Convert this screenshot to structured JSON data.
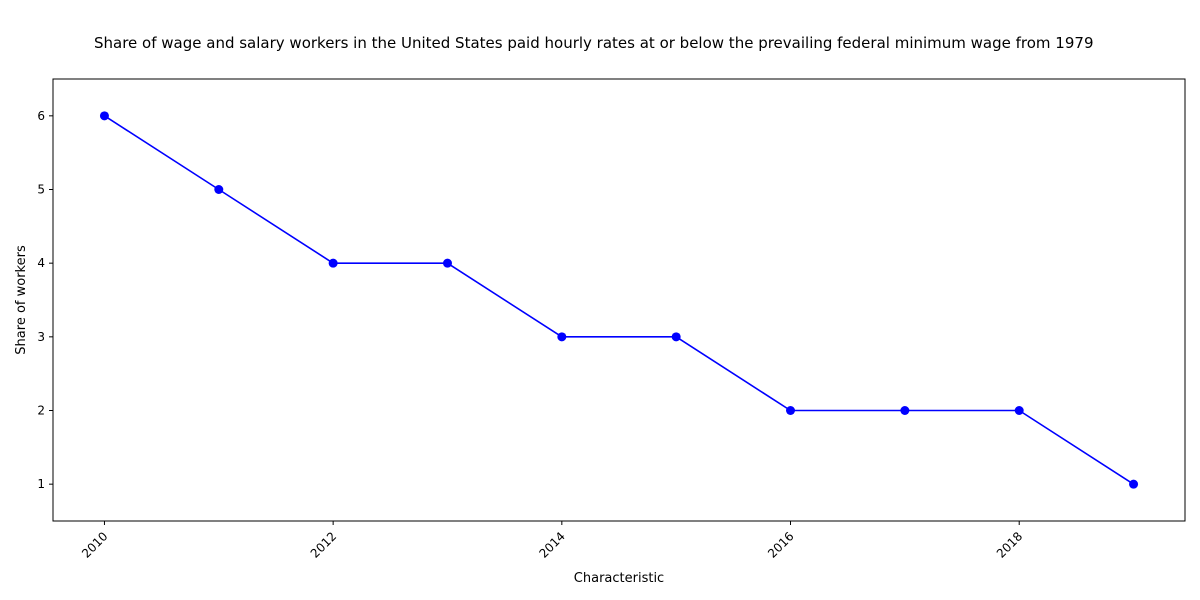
{
  "chart_data": {
    "type": "line",
    "title": "Share of wage and salary workers in the United States paid hourly rates at or below the prevailing federal minimum wage from 1979",
    "xlabel": "Characteristic",
    "ylabel": "Share of workers",
    "x": [
      2010,
      2011,
      2012,
      2013,
      2014,
      2015,
      2016,
      2017,
      2018,
      2019
    ],
    "series": [
      {
        "values": [
          6,
          5,
          4,
          4,
          3,
          3,
          2,
          2,
          2,
          1
        ],
        "color": "#0000ff"
      }
    ],
    "xlim": [
      2009.55,
      2019.45
    ],
    "ylim": [
      0.5,
      6.5
    ],
    "x_ticks": [
      "2010",
      "2012",
      "2014",
      "2016",
      "2018"
    ],
    "y_ticks": [
      "1",
      "2",
      "3",
      "4",
      "5",
      "6"
    ],
    "grid": false,
    "legend": "none",
    "marker": "circle"
  }
}
